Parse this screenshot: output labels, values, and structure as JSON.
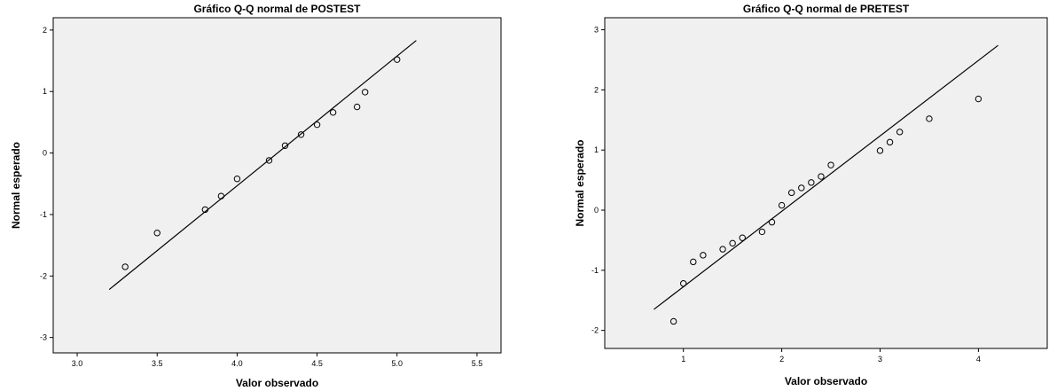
{
  "chart_data": [
    {
      "type": "scatter",
      "title": "Gráfico Q-Q normal de POSTEST",
      "xlabel": "Valor observado",
      "ylabel": "Normal esperado",
      "xlim": [
        2.85,
        5.65
      ],
      "ylim": [
        -3.25,
        2.2
      ],
      "xticks": [
        3.0,
        3.5,
        4.0,
        4.5,
        5.0,
        5.5
      ],
      "xtick_labels": [
        "3.0",
        "3.5",
        "4.0",
        "4.5",
        "5.0",
        "5.5"
      ],
      "yticks": [
        -3,
        -2,
        -1,
        0,
        1,
        2
      ],
      "ytick_labels": [
        "-3",
        "-2",
        "-1",
        "0",
        "1",
        "2"
      ],
      "grid": false,
      "points": {
        "x": [
          3.3,
          3.5,
          3.8,
          3.9,
          4.0,
          4.2,
          4.3,
          4.4,
          4.5,
          4.6,
          4.75,
          4.8,
          5.0
        ],
        "y": [
          -1.85,
          -1.3,
          -0.92,
          -0.7,
          -0.42,
          -0.12,
          0.12,
          0.3,
          0.46,
          0.66,
          0.75,
          0.99,
          1.52
        ]
      },
      "reference_line": {
        "x": [
          3.2,
          5.12
        ],
        "y": [
          -2.22,
          1.83
        ]
      },
      "colors": {
        "plot_background": "#f0f0f0",
        "marker": "#000000",
        "line": "#000000"
      }
    },
    {
      "type": "scatter",
      "title": "Gráfico Q-Q normal de PRETEST",
      "xlabel": "Valor observado",
      "ylabel": "Normal esperado",
      "xlim": [
        0.2,
        4.7
      ],
      "ylim": [
        -2.3,
        3.2
      ],
      "xticks": [
        1,
        2,
        3,
        4
      ],
      "xtick_labels": [
        "1",
        "2",
        "3",
        "4"
      ],
      "yticks": [
        -2,
        -1,
        0,
        1,
        2,
        3
      ],
      "ytick_labels": [
        "-2",
        "-1",
        "0",
        "1",
        "2",
        "3"
      ],
      "grid": false,
      "points": {
        "x": [
          0.9,
          1.0,
          1.1,
          1.2,
          1.4,
          1.5,
          1.6,
          1.8,
          1.9,
          2.0,
          2.1,
          2.2,
          2.3,
          2.4,
          2.5,
          3.0,
          3.1,
          3.2,
          3.5,
          4.0
        ],
        "y": [
          -1.85,
          -1.22,
          -0.86,
          -0.75,
          -0.65,
          -0.55,
          -0.46,
          -0.36,
          -0.2,
          0.08,
          0.29,
          0.37,
          0.46,
          0.56,
          0.75,
          0.99,
          1.13,
          1.3,
          1.52,
          1.85
        ]
      },
      "reference_line": {
        "x": [
          0.7,
          4.2
        ],
        "y": [
          -1.65,
          2.74
        ]
      },
      "colors": {
        "plot_background": "#f0f0f0",
        "marker": "#000000",
        "line": "#000000"
      }
    }
  ]
}
